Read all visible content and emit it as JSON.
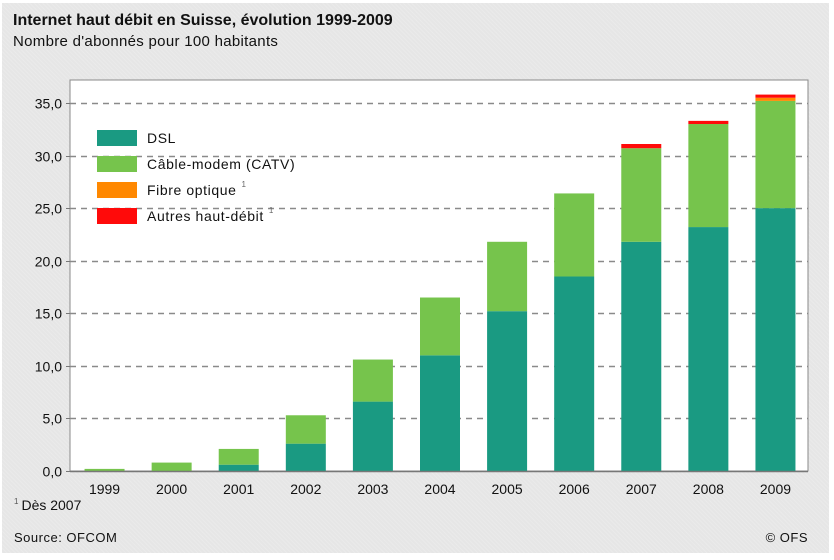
{
  "chart_data": {
    "type": "bar",
    "stacked": true,
    "title": "Internet haut débit en Suisse, évolution 1999-2009",
    "subtitle": "Nombre d'abonnés pour 100 habitants",
    "xlabel": "",
    "ylabel": "",
    "categories": [
      "1999",
      "2000",
      "2001",
      "2002",
      "2003",
      "2004",
      "2005",
      "2006",
      "2007",
      "2008",
      "2009"
    ],
    "series": [
      {
        "name": "DSL",
        "color": "#1a9a82",
        "values": [
          0.0,
          0.0,
          0.6,
          2.6,
          6.6,
          11.0,
          15.2,
          18.5,
          21.8,
          23.2,
          25.0
        ]
      },
      {
        "name": "Câble-modem (CATV)",
        "color": "#76c44c",
        "values": [
          0.2,
          0.8,
          1.5,
          2.7,
          4.0,
          5.5,
          6.6,
          7.9,
          8.9,
          9.8,
          10.2
        ]
      },
      {
        "name": "Fibre optique",
        "footnote_mark": "1",
        "color": "#ff8800",
        "values": [
          0,
          0,
          0,
          0,
          0,
          0,
          0,
          0,
          0.0,
          0.0,
          0.3
        ]
      },
      {
        "name": "Autres haut-débit",
        "footnote_mark": "1",
        "color": "#ff0a0a",
        "values": [
          0,
          0,
          0,
          0,
          0,
          0,
          0,
          0,
          0.4,
          0.3,
          0.3
        ]
      }
    ],
    "ylim": [
      0,
      35
    ],
    "yticks": [
      "0,0",
      "5,0",
      "10,0",
      "15,0",
      "20,0",
      "25,0",
      "30,0",
      "35,0"
    ],
    "ytick_values": [
      0,
      5,
      10,
      15,
      20,
      25,
      30,
      35
    ],
    "grid": true,
    "grid_style": "dashed",
    "legend_position": "top-left"
  },
  "footnote": {
    "mark": "1",
    "text": "Dès 2007"
  },
  "source": "Source: OFCOM",
  "copyright": "© OFS"
}
